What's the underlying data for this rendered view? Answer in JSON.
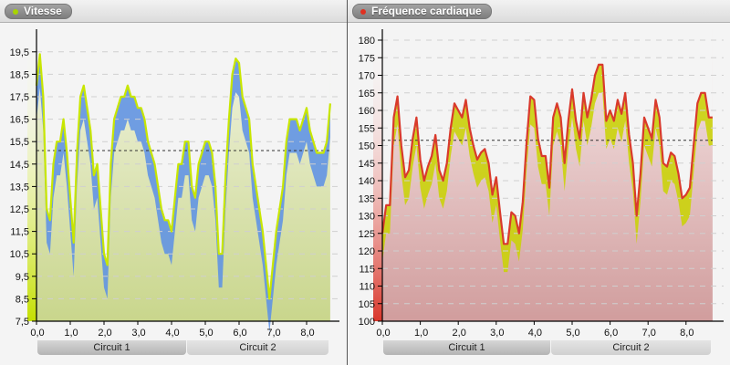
{
  "panels": {
    "left": {
      "title": "Vitesse",
      "dot_color": "#a8d400"
    },
    "right": {
      "title": "Fréquence cardiaque",
      "dot_color": "#e03020"
    }
  },
  "circuits": [
    "Circuit 1",
    "Circuit 2"
  ],
  "chart_data": [
    {
      "type": "area",
      "title": "Vitesse",
      "xlabel": "",
      "ylabel": "",
      "x_ticks": [
        "0,0",
        "1,0",
        "2,0",
        "3,0",
        "4,0",
        "5,0",
        "6,0",
        "7,0",
        "8,0"
      ],
      "y_ticks": [
        "7,5",
        "8,5",
        "9,5",
        "10,5",
        "11,5",
        "12,5",
        "13,5",
        "14,5",
        "15,5",
        "16,5",
        "17,5",
        "18,5",
        "19,5"
      ],
      "xlim": [
        0,
        8.7
      ],
      "ylim": [
        7.5,
        20.5
      ],
      "grid": "horizontal dashed",
      "reference_line": 15.1,
      "x_groups": [
        {
          "label": "Circuit 1",
          "range": [
            0,
            4.4
          ]
        },
        {
          "label": "Circuit 2",
          "range": [
            4.4,
            8.7
          ]
        }
      ],
      "series": [
        {
          "name": "Vitesse",
          "color": "#c8e600",
          "x": [
            0,
            0.1,
            0.2,
            0.3,
            0.4,
            0.5,
            0.6,
            0.7,
            0.8,
            0.9,
            1.0,
            1.1,
            1.2,
            1.3,
            1.4,
            1.5,
            1.6,
            1.7,
            1.8,
            1.9,
            2.0,
            2.1,
            2.2,
            2.3,
            2.4,
            2.5,
            2.6,
            2.7,
            2.8,
            2.9,
            3.0,
            3.1,
            3.2,
            3.3,
            3.4,
            3.5,
            3.6,
            3.7,
            3.8,
            3.9,
            4.0,
            4.1,
            4.2,
            4.3,
            4.4,
            4.5,
            4.6,
            4.7,
            4.8,
            4.9,
            5.0,
            5.1,
            5.2,
            5.3,
            5.4,
            5.5,
            5.6,
            5.7,
            5.8,
            5.9,
            6.0,
            6.1,
            6.2,
            6.3,
            6.4,
            6.5,
            6.6,
            6.7,
            6.8,
            6.9,
            7.0,
            7.1,
            7.2,
            7.3,
            7.4,
            7.5,
            7.6,
            7.7,
            7.8,
            7.9,
            8.0,
            8.1,
            8.2,
            8.3,
            8.4,
            8.5,
            8.6,
            8.7
          ],
          "values": [
            18.0,
            19.4,
            17.5,
            12.5,
            12.0,
            14.5,
            15.5,
            15.5,
            16.5,
            15.0,
            13.0,
            11.0,
            15.0,
            17.5,
            18.0,
            17.0,
            16.0,
            14.0,
            14.5,
            12.5,
            10.5,
            10.0,
            14.5,
            16.5,
            17.0,
            17.5,
            17.5,
            18.0,
            17.5,
            17.5,
            17.0,
            17.0,
            16.5,
            15.5,
            15.0,
            14.5,
            13.5,
            12.5,
            12.0,
            12.0,
            11.5,
            13.0,
            14.5,
            14.5,
            15.5,
            15.5,
            13.5,
            13.0,
            14.5,
            15.0,
            15.5,
            15.5,
            15.0,
            13.5,
            10.5,
            10.5,
            14.0,
            16.5,
            18.5,
            19.2,
            19.0,
            17.5,
            17.0,
            16.5,
            14.5,
            13.5,
            12.5,
            11.5,
            10.0,
            8.5,
            10.0,
            11.5,
            12.5,
            13.5,
            15.5,
            16.5,
            16.5,
            16.5,
            16.0,
            16.5,
            17.0,
            16.0,
            15.5,
            15.0,
            15.0,
            15.0,
            15.5,
            17.2
          ]
        }
      ]
    },
    {
      "type": "area",
      "title": "Fréquence cardiaque",
      "xlabel": "",
      "ylabel": "",
      "x_ticks": [
        "0,0",
        "1,0",
        "2,0",
        "3,0",
        "4,0",
        "5,0",
        "6,0",
        "7,0",
        "8,0"
      ],
      "y_ticks": [
        "100",
        "105",
        "110",
        "115",
        "120",
        "125",
        "130",
        "135",
        "140",
        "145",
        "150",
        "155",
        "160",
        "165",
        "170",
        "175",
        "180"
      ],
      "xlim": [
        0,
        8.7
      ],
      "ylim": [
        100,
        182
      ],
      "grid": "horizontal dashed",
      "reference_line": 151.5,
      "x_groups": [
        {
          "label": "Circuit 1",
          "range": [
            0,
            4.4
          ]
        },
        {
          "label": "Circuit 2",
          "range": [
            4.4,
            8.7
          ]
        }
      ],
      "series": [
        {
          "name": "Fréquence cardiaque",
          "color": "#e0352b",
          "x": [
            0,
            0.1,
            0.2,
            0.3,
            0.4,
            0.5,
            0.6,
            0.7,
            0.8,
            0.9,
            1.0,
            1.1,
            1.2,
            1.3,
            1.4,
            1.5,
            1.6,
            1.7,
            1.8,
            1.9,
            2.0,
            2.1,
            2.2,
            2.3,
            2.4,
            2.5,
            2.6,
            2.7,
            2.8,
            2.9,
            3.0,
            3.1,
            3.2,
            3.3,
            3.4,
            3.5,
            3.6,
            3.7,
            3.8,
            3.9,
            4.0,
            4.1,
            4.2,
            4.3,
            4.4,
            4.5,
            4.6,
            4.7,
            4.8,
            4.9,
            5.0,
            5.1,
            5.2,
            5.3,
            5.4,
            5.5,
            5.6,
            5.7,
            5.8,
            5.9,
            6.0,
            6.1,
            6.2,
            6.3,
            6.4,
            6.5,
            6.6,
            6.7,
            6.8,
            6.9,
            7.0,
            7.1,
            7.2,
            7.3,
            7.4,
            7.5,
            7.6,
            7.7,
            7.8,
            7.9,
            8.0,
            8.1,
            8.2,
            8.3,
            8.4,
            8.5,
            8.6,
            8.7
          ],
          "values": [
            125,
            133,
            133,
            158,
            164,
            150,
            141,
            143,
            152,
            158,
            146,
            140,
            144,
            147,
            153,
            143,
            140,
            145,
            155,
            162,
            160,
            158,
            163,
            155,
            150,
            146,
            148,
            149,
            145,
            136,
            141,
            131,
            122,
            122,
            131,
            130,
            125,
            134,
            151,
            164,
            163,
            152,
            147,
            147,
            138,
            158,
            162,
            158,
            145,
            157,
            166,
            157,
            152,
            165,
            158,
            163,
            170,
            173,
            173,
            157,
            160,
            157,
            163,
            159,
            165,
            153,
            145,
            130,
            142,
            158,
            155,
            152,
            163,
            158,
            145,
            144,
            148,
            147,
            142,
            135,
            136,
            138,
            150,
            162,
            165,
            165,
            158,
            158
          ]
        }
      ]
    }
  ]
}
